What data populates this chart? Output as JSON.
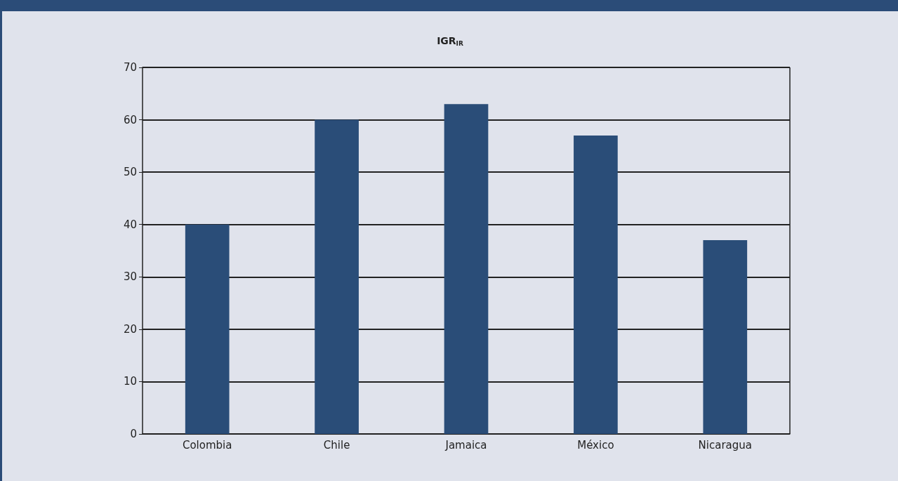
{
  "chart_data": {
    "type": "bar",
    "title": "IGR$_{IR}$",
    "categories": [
      "Colombia",
      "Chile",
      "Jamaica",
      "México",
      "Nicaragua"
    ],
    "values": [
      40,
      60,
      63,
      57,
      37
    ],
    "color": "#2a4d78",
    "ylim": [
      0,
      70
    ],
    "yticks": [
      0,
      10,
      20,
      30,
      40,
      50,
      60,
      70
    ],
    "grid": "y"
  }
}
